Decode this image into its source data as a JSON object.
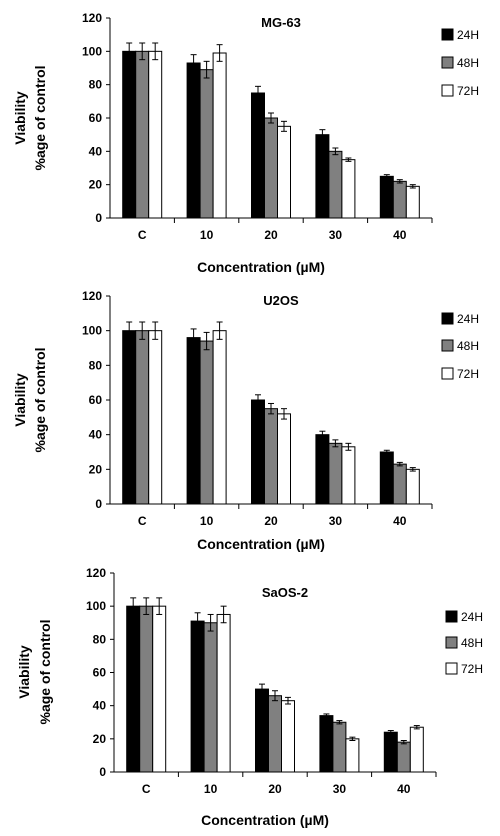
{
  "charts": [
    {
      "type": "bar",
      "title": "MG-63",
      "xlabel": "Concentration (µM)",
      "ylabel_lines": [
        "Viability",
        "%age of control"
      ],
      "categories": [
        "C",
        "10",
        "20",
        "30",
        "40"
      ],
      "series": [
        {
          "name": "24H",
          "color": "#000000",
          "values": [
            100,
            93,
            75,
            50,
            25
          ],
          "errors": [
            5,
            5,
            4,
            3,
            1
          ]
        },
        {
          "name": "48H",
          "color": "#808080",
          "values": [
            100,
            89,
            60,
            40,
            22
          ],
          "errors": [
            5,
            5,
            3,
            2,
            1
          ]
        },
        {
          "name": "72H",
          "color": "#ffffff",
          "values": [
            100,
            99,
            55,
            35,
            19
          ],
          "errors": [
            5,
            5,
            3,
            1,
            1
          ]
        }
      ],
      "ylim": [
        0,
        120
      ],
      "yticks": [
        0,
        20,
        40,
        60,
        80,
        100,
        120
      ],
      "legend": "right"
    },
    {
      "type": "bar",
      "title": "U2OS",
      "xlabel": "Concentration (µM)",
      "ylabel_lines": [
        "Viability",
        "%age of control"
      ],
      "categories": [
        "C",
        "10",
        "20",
        "30",
        "40"
      ],
      "series": [
        {
          "name": "24H",
          "color": "#000000",
          "values": [
            100,
            96,
            60,
            40,
            30
          ],
          "errors": [
            5,
            5,
            3,
            2,
            1
          ]
        },
        {
          "name": "48H",
          "color": "#808080",
          "values": [
            100,
            94,
            55,
            35,
            23
          ],
          "errors": [
            5,
            5,
            3,
            2,
            1
          ]
        },
        {
          "name": "72H",
          "color": "#ffffff",
          "values": [
            100,
            100,
            52,
            33,
            20
          ],
          "errors": [
            5,
            5,
            3,
            2,
            1
          ]
        }
      ],
      "ylim": [
        0,
        120
      ],
      "yticks": [
        0,
        20,
        40,
        60,
        80,
        100,
        120
      ],
      "legend": "right"
    },
    {
      "type": "bar",
      "title": "SaOS-2",
      "xlabel": "Concentration (µM)",
      "ylabel_lines": [
        "Viability",
        "%age of control"
      ],
      "categories": [
        "C",
        "10",
        "20",
        "30",
        "40"
      ],
      "series": [
        {
          "name": "24H",
          "color": "#000000",
          "values": [
            100,
            91,
            50,
            34,
            24
          ],
          "errors": [
            5,
            5,
            3,
            1,
            1
          ]
        },
        {
          "name": "48H",
          "color": "#808080",
          "values": [
            100,
            90,
            46,
            30,
            18
          ],
          "errors": [
            5,
            5,
            3,
            1,
            1
          ]
        },
        {
          "name": "72H",
          "color": "#ffffff",
          "values": [
            100,
            95,
            43,
            20,
            27
          ],
          "errors": [
            5,
            5,
            2,
            1,
            1
          ]
        }
      ],
      "ylim": [
        0,
        120
      ],
      "yticks": [
        0,
        20,
        40,
        60,
        80,
        100,
        120
      ],
      "legend": "right"
    }
  ]
}
